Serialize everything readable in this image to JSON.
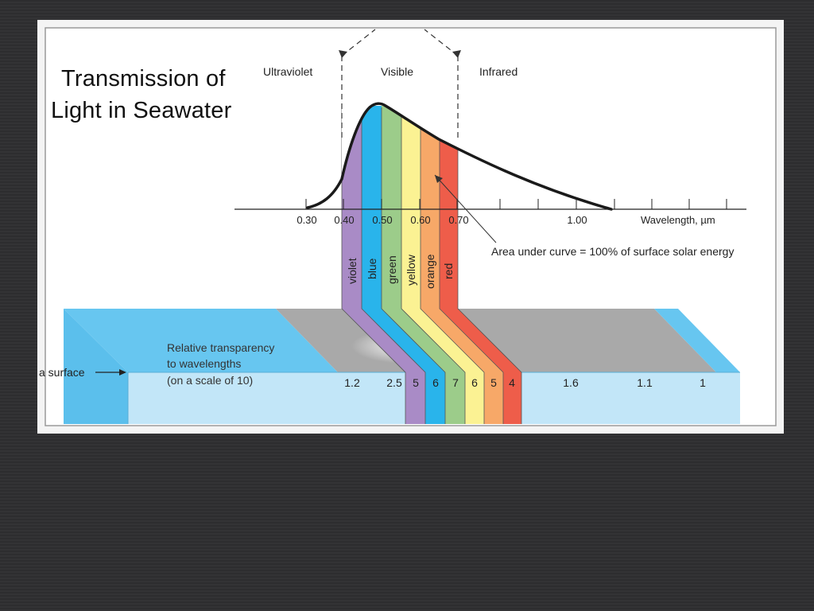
{
  "slide": {
    "title_line1": "Transmission of",
    "title_line2": "Light in Seawater"
  },
  "diagram": {
    "regions": {
      "ultraviolet": "Ultraviolet",
      "visible": "Visible",
      "infrared": "Infrared"
    },
    "axis": {
      "ticks": [
        "0.30",
        "0.40",
        "0.50",
        "0.60",
        "0.70",
        "1.00"
      ],
      "label": "Wavelength, µm"
    },
    "bands": [
      {
        "name": "violet",
        "color": "#a98bc6",
        "transparency": "5"
      },
      {
        "name": "blue",
        "color": "#29b4eb",
        "transparency": "6"
      },
      {
        "name": "green",
        "color": "#9ccc8a",
        "transparency": "7"
      },
      {
        "name": "yellow",
        "color": "#fbf293",
        "transparency": "6"
      },
      {
        "name": "orange",
        "color": "#f7a868",
        "transparency": "5"
      },
      {
        "name": "red",
        "color": "#ee5d4a",
        "transparency": "4"
      }
    ],
    "curve_note": "Area under curve = 100% of surface solar energy",
    "surface_label": "a surface",
    "transparency_caption": {
      "line1": "Relative transparency",
      "line2": "to wavelengths",
      "line3": "(on a scale of 10)"
    },
    "transparency_values": {
      "uv_040": "1.2",
      "uv_045": "2.5",
      "ir_a": "1.6",
      "ir_b": "1.1",
      "ir_c": "1"
    },
    "colors": {
      "water_top": "#67c6f0",
      "water_front": "#c2e6f8",
      "surface_gray": "#a9a9a9",
      "curve": "#1a1a1a",
      "frame": "#f4f4f4"
    }
  }
}
